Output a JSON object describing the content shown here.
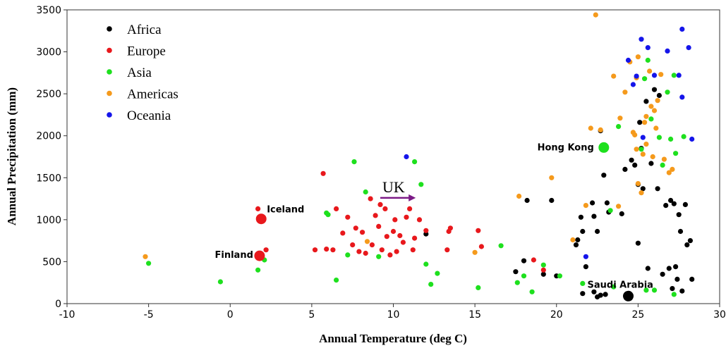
{
  "chart_data": {
    "type": "scatter",
    "title": "",
    "xlabel": "Annual Temperature (deg C)",
    "ylabel": "Annual Precipitation (mm)",
    "xlim": [
      -10,
      30
    ],
    "ylim": [
      0,
      3500
    ],
    "xticks": [
      -10,
      -5,
      0,
      5,
      10,
      15,
      20,
      25,
      30
    ],
    "yticks": [
      0,
      500,
      1000,
      1500,
      2000,
      2500,
      3000,
      3500
    ],
    "grid": false,
    "legend_position": "top-left",
    "series": [
      {
        "name": "Africa",
        "color": "#000000",
        "points": [
          [
            12,
            830
          ],
          [
            17.5,
            380
          ],
          [
            18,
            510
          ],
          [
            18.2,
            1230
          ],
          [
            19.2,
            350
          ],
          [
            19.7,
            1230
          ],
          [
            20,
            330
          ],
          [
            21.2,
            700
          ],
          [
            21.3,
            760
          ],
          [
            21.5,
            1030
          ],
          [
            21.6,
            860
          ],
          [
            21.8,
            440
          ],
          [
            22.2,
            1200
          ],
          [
            22.3,
            1040
          ],
          [
            22.5,
            860
          ],
          [
            22.7,
            2060
          ],
          [
            22.9,
            1530
          ],
          [
            23.1,
            1200
          ],
          [
            23.2,
            1090
          ],
          [
            24.2,
            1600
          ],
          [
            24.6,
            1710
          ],
          [
            24.8,
            1650
          ],
          [
            25,
            1420
          ],
          [
            25.1,
            2160
          ],
          [
            25.2,
            1850
          ],
          [
            25.3,
            1370
          ],
          [
            25.5,
            2410
          ],
          [
            25.8,
            1670
          ],
          [
            26,
            2550
          ],
          [
            26.2,
            1370
          ],
          [
            26.3,
            2480
          ],
          [
            26.7,
            1170
          ],
          [
            27,
            1230
          ],
          [
            27.2,
            1190
          ],
          [
            27.3,
            440
          ],
          [
            27.5,
            1060
          ],
          [
            27.6,
            860
          ],
          [
            27.9,
            1180
          ],
          [
            28,
            700
          ],
          [
            28.2,
            750
          ],
          [
            28.3,
            290
          ],
          [
            26.5,
            350
          ],
          [
            26.9,
            420
          ],
          [
            27.1,
            180
          ],
          [
            27.4,
            290
          ],
          [
            27.7,
            150
          ],
          [
            25.6,
            420
          ],
          [
            25,
            720
          ],
          [
            22.3,
            140
          ],
          [
            22.5,
            80
          ],
          [
            22.7,
            100
          ],
          [
            23,
            110
          ],
          [
            21.6,
            120
          ],
          [
            24,
            1070
          ]
        ]
      },
      {
        "name": "Europe",
        "color": "#e8181c",
        "points": [
          [
            1.7,
            1130
          ],
          [
            2.2,
            640
          ],
          [
            5.2,
            640
          ],
          [
            5.7,
            1550
          ],
          [
            5.9,
            650
          ],
          [
            6.3,
            640
          ],
          [
            6.5,
            1130
          ],
          [
            6.9,
            840
          ],
          [
            7.2,
            1030
          ],
          [
            7.5,
            700
          ],
          [
            7.7,
            900
          ],
          [
            7.9,
            620
          ],
          [
            8.1,
            850
          ],
          [
            8.3,
            600
          ],
          [
            8.6,
            1250
          ],
          [
            8.7,
            700
          ],
          [
            8.9,
            1050
          ],
          [
            9.1,
            920
          ],
          [
            9.2,
            1180
          ],
          [
            9.3,
            640
          ],
          [
            9.5,
            1130
          ],
          [
            9.6,
            800
          ],
          [
            9.8,
            580
          ],
          [
            10,
            860
          ],
          [
            10.1,
            1000
          ],
          [
            10.2,
            620
          ],
          [
            10.4,
            810
          ],
          [
            10.6,
            730
          ],
          [
            10.8,
            1030
          ],
          [
            11,
            1130
          ],
          [
            11.2,
            640
          ],
          [
            11.3,
            780
          ],
          [
            11.6,
            1000
          ],
          [
            12,
            870
          ],
          [
            13.3,
            640
          ],
          [
            13.4,
            860
          ],
          [
            13.5,
            900
          ],
          [
            15.2,
            870
          ],
          [
            15.4,
            680
          ],
          [
            19.2,
            400
          ],
          [
            18.6,
            520
          ]
        ]
      },
      {
        "name": "Asia",
        "color": "#1ee01e",
        "points": [
          [
            -5,
            480
          ],
          [
            -0.6,
            260
          ],
          [
            1.7,
            400
          ],
          [
            2.1,
            520
          ],
          [
            5.9,
            1080
          ],
          [
            6,
            1060
          ],
          [
            6.5,
            280
          ],
          [
            7.2,
            580
          ],
          [
            7.6,
            1690
          ],
          [
            8.3,
            1330
          ],
          [
            9.1,
            560
          ],
          [
            11.3,
            1690
          ],
          [
            11.7,
            1420
          ],
          [
            12,
            470
          ],
          [
            12.3,
            230
          ],
          [
            12.7,
            360
          ],
          [
            15.2,
            190
          ],
          [
            16.6,
            690
          ],
          [
            17.6,
            250
          ],
          [
            18,
            330
          ],
          [
            18.5,
            140
          ],
          [
            19.2,
            460
          ],
          [
            20.2,
            330
          ],
          [
            21.6,
            240
          ],
          [
            23.3,
            1110
          ],
          [
            23.5,
            200
          ],
          [
            23.8,
            2110
          ],
          [
            25.2,
            1840
          ],
          [
            25.4,
            2680
          ],
          [
            25.6,
            2900
          ],
          [
            25.8,
            2200
          ],
          [
            26.3,
            1980
          ],
          [
            26.5,
            1650
          ],
          [
            26.8,
            2520
          ],
          [
            27,
            1960
          ],
          [
            27.2,
            2720
          ],
          [
            27.3,
            1790
          ],
          [
            27.8,
            1990
          ],
          [
            25.5,
            160
          ],
          [
            26,
            160
          ],
          [
            27.2,
            110
          ]
        ]
      },
      {
        "name": "Americas",
        "color": "#f59a1c",
        "points": [
          [
            -5.2,
            560
          ],
          [
            8.4,
            740
          ],
          [
            15,
            610
          ],
          [
            17.7,
            1280
          ],
          [
            19.7,
            1500
          ],
          [
            21,
            760
          ],
          [
            21.8,
            1170
          ],
          [
            22.1,
            2090
          ],
          [
            22.4,
            3440
          ],
          [
            22.7,
            2070
          ],
          [
            23.5,
            2710
          ],
          [
            23.8,
            1160
          ],
          [
            23.9,
            2210
          ],
          [
            24.2,
            2520
          ],
          [
            24.5,
            2880
          ],
          [
            24.7,
            2040
          ],
          [
            24.9,
            1840
          ],
          [
            25,
            1430
          ],
          [
            25.2,
            1320
          ],
          [
            25.3,
            1780
          ],
          [
            25.4,
            2160
          ],
          [
            25.5,
            2230
          ],
          [
            25.7,
            2770
          ],
          [
            25.8,
            2350
          ],
          [
            25.9,
            1750
          ],
          [
            26.1,
            2090
          ],
          [
            26.2,
            2420
          ],
          [
            26.4,
            2730
          ],
          [
            26.6,
            1720
          ],
          [
            26.9,
            1560
          ],
          [
            27.1,
            1600
          ],
          [
            25,
            2940
          ],
          [
            24.8,
            2010
          ],
          [
            26,
            2300
          ],
          [
            24.9,
            2690
          ],
          [
            25.5,
            1900
          ]
        ]
      },
      {
        "name": "Oceania",
        "color": "#1515ea",
        "points": [
          [
            10.8,
            1750
          ],
          [
            21.8,
            560
          ],
          [
            24.4,
            2900
          ],
          [
            24.7,
            2610
          ],
          [
            25.2,
            3150
          ],
          [
            25.6,
            3050
          ],
          [
            25.3,
            1980
          ],
          [
            26,
            2720
          ],
          [
            26.8,
            3010
          ],
          [
            27.5,
            2720
          ],
          [
            27.7,
            3270
          ],
          [
            27.7,
            2460
          ],
          [
            28.1,
            3050
          ],
          [
            28.3,
            1960
          ],
          [
            24.9,
            2710
          ]
        ]
      }
    ],
    "highlighted_points": [
      {
        "label": "Iceland",
        "x": 1.9,
        "y": 1010,
        "color": "#e8181c"
      },
      {
        "label": "Finland",
        "x": 1.8,
        "y": 570,
        "color": "#e8181c"
      },
      {
        "label": "Hong Kong",
        "x": 22.9,
        "y": 1860,
        "color": "#1ee01e"
      },
      {
        "label": "Saudi Arabia",
        "x": 24.4,
        "y": 90,
        "color": "#000000"
      }
    ],
    "annotations": [
      {
        "label": "UK",
        "x_start": 9.2,
        "x_end": 11.5,
        "y": 1260,
        "color": "#7b1a86"
      }
    ]
  }
}
